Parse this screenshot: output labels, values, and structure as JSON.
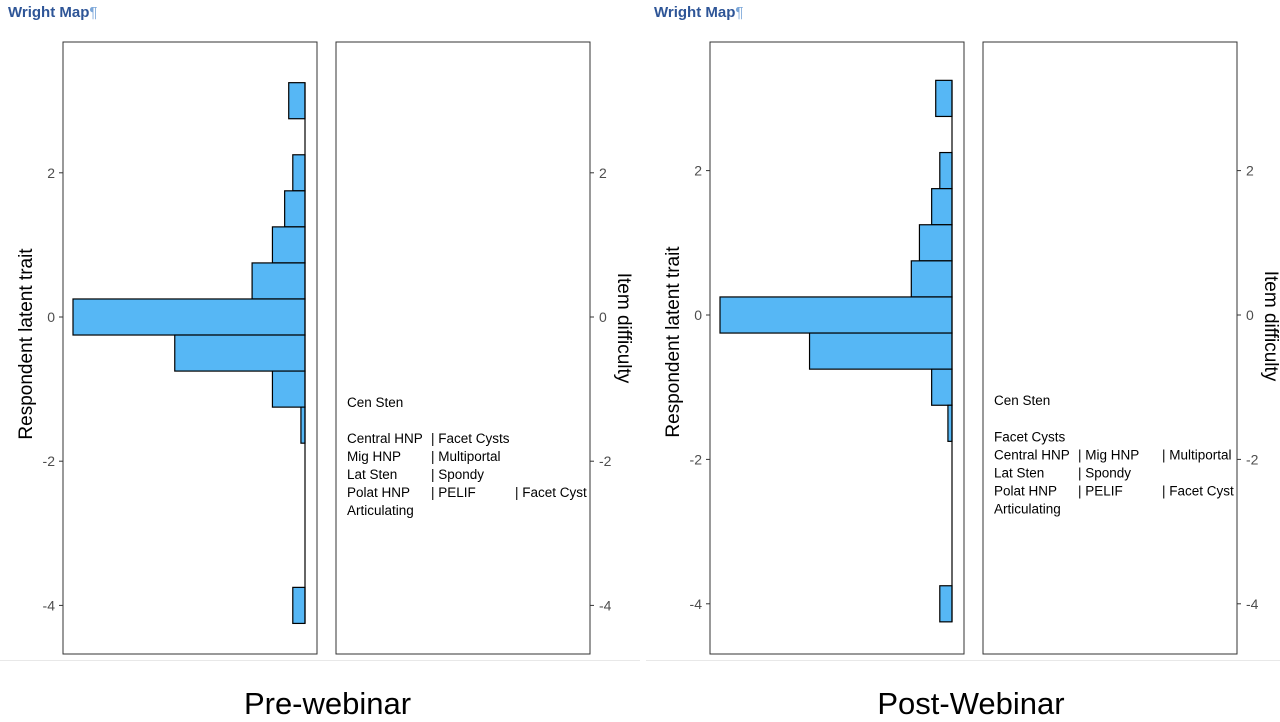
{
  "header_label": "Wright Map",
  "header_mark": "¶",
  "chart_data": [
    {
      "type": "wright-map",
      "caption": "Pre-webinar",
      "ylabel_left": "Respondent latent trait",
      "ylabel_right": "Item difficulty",
      "ylim": [
        -4.6,
        3.8
      ],
      "yticks": [
        2,
        0,
        -2,
        -4
      ],
      "ytick_labels": [
        "2",
        "0",
        "-2",
        "-4"
      ],
      "hist_bin_width": 0.5,
      "hist_xmax": 57,
      "histogram": [
        {
          "center": 3.0,
          "count": 4
        },
        {
          "center": 2.0,
          "count": 3
        },
        {
          "center": 1.5,
          "count": 5
        },
        {
          "center": 1.0,
          "count": 8
        },
        {
          "center": 0.5,
          "count": 13
        },
        {
          "center": 0.0,
          "count": 57
        },
        {
          "center": -0.5,
          "count": 32
        },
        {
          "center": -1.0,
          "count": 8
        },
        {
          "center": -1.5,
          "count": 1
        },
        {
          "center": -4.0,
          "count": 3
        }
      ],
      "item_lines": [
        {
          "y": -1.18,
          "cols": [
            "Cen Sten"
          ]
        },
        {
          "y": -1.68,
          "cols": [
            "Central HNP",
            "| Facet Cysts"
          ]
        },
        {
          "y": -1.93,
          "cols": [
            "Mig HNP",
            "| Multiportal"
          ]
        },
        {
          "y": -2.18,
          "cols": [
            "Lat Sten",
            "| Spondy"
          ]
        },
        {
          "y": -2.43,
          "cols": [
            "Polat HNP",
            "| PELIF",
            "| Facet Cyst"
          ]
        },
        {
          "y": -2.68,
          "cols": [
            "Articulating"
          ]
        }
      ]
    },
    {
      "type": "wright-map",
      "caption": "Post-Webinar",
      "ylabel_left": "Respondent latent trait",
      "ylabel_right": "Item difficulty",
      "ylim": [
        -4.6,
        3.8
      ],
      "yticks": [
        2,
        0,
        -2,
        -4
      ],
      "ytick_labels": [
        "2",
        "0",
        "-2",
        "-4"
      ],
      "hist_bin_width": 0.5,
      "hist_xmax": 57,
      "histogram": [
        {
          "center": 3.0,
          "count": 4
        },
        {
          "center": 2.0,
          "count": 3
        },
        {
          "center": 1.5,
          "count": 5
        },
        {
          "center": 1.0,
          "count": 8
        },
        {
          "center": 0.5,
          "count": 10
        },
        {
          "center": 0.0,
          "count": 57
        },
        {
          "center": -0.5,
          "count": 35
        },
        {
          "center": -1.0,
          "count": 5
        },
        {
          "center": -1.5,
          "count": 1
        },
        {
          "center": -4.0,
          "count": 3
        }
      ],
      "item_lines": [
        {
          "y": -1.18,
          "cols": [
            "Cen Sten"
          ]
        },
        {
          "y": -1.68,
          "cols": [
            "Facet Cysts"
          ]
        },
        {
          "y": -1.93,
          "cols": [
            "Central HNP",
            "| Mig HNP",
            "| Multiportal"
          ]
        },
        {
          "y": -2.18,
          "cols": [
            "Lat Sten",
            "| Spondy"
          ]
        },
        {
          "y": -2.43,
          "cols": [
            "Polat HNP",
            "| PELIF",
            "| Facet Cyst"
          ]
        },
        {
          "y": -2.68,
          "cols": [
            "Articulating"
          ]
        }
      ]
    }
  ],
  "style": {
    "bar_fill": "#56b7f5",
    "bar_stroke": "#000000",
    "axis_color": "#333333",
    "tick_label_color": "#4d4d4d",
    "header_color": "#2e5597"
  }
}
